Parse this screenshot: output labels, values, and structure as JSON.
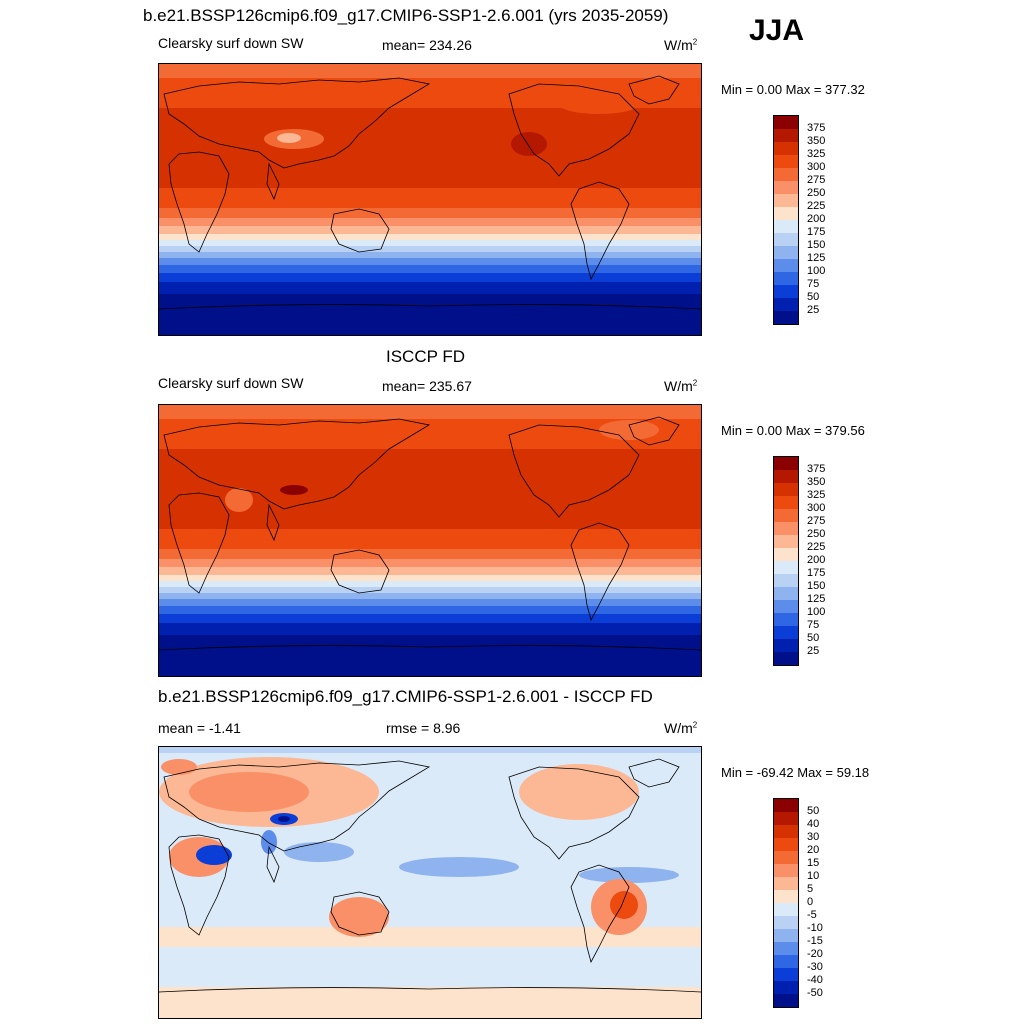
{
  "season": "JJA",
  "panels": [
    {
      "title": "b.e21.BSSP126cmip6.f09_g17.CMIP6-SSP1-2.6.001 (yrs 2035-2059)",
      "left_label": "Clearsky surf down SW",
      "center_label": "mean= 234.26",
      "units": "W/m",
      "units_sup": "2",
      "minmax": "Min =   0.00 Max = 377.32",
      "colorbar_labels": [
        "375",
        "350",
        "325",
        "300",
        "275",
        "250",
        "225",
        "200",
        "175",
        "150",
        "125",
        "100",
        "75",
        "50",
        "25"
      ],
      "colors": [
        "#8b0000",
        "#b51800",
        "#d63100",
        "#ed4a10",
        "#f36a34",
        "#f99068",
        "#fcb895",
        "#fde3cc",
        "#dbeaf8",
        "#b9d2f4",
        "#8fb3ef",
        "#5d8deb",
        "#2f66e4",
        "#0b3ed6",
        "#0020b0",
        "#00108a"
      ]
    },
    {
      "title": "ISCCP FD",
      "left_label": "Clearsky surf down SW",
      "center_label": "mean= 235.67",
      "units": "W/m",
      "units_sup": "2",
      "minmax": "Min =   0.00 Max = 379.56",
      "colorbar_labels": [
        "375",
        "350",
        "325",
        "300",
        "275",
        "250",
        "225",
        "200",
        "175",
        "150",
        "125",
        "100",
        "75",
        "50",
        "25"
      ],
      "colors": [
        "#8b0000",
        "#b51800",
        "#d63100",
        "#ed4a10",
        "#f36a34",
        "#f99068",
        "#fcb895",
        "#fde3cc",
        "#dbeaf8",
        "#b9d2f4",
        "#8fb3ef",
        "#5d8deb",
        "#2f66e4",
        "#0b3ed6",
        "#0020b0",
        "#00108a"
      ]
    },
    {
      "title": "b.e21.BSSP126cmip6.f09_g17.CMIP6-SSP1-2.6.001 - ISCCP FD",
      "left_label": "mean =  -1.41",
      "center_label": "rmse =   8.96",
      "units": "W/m",
      "units_sup": "2",
      "minmax": "Min = -69.42 Max =  59.18",
      "colorbar_labels": [
        "50",
        "40",
        "30",
        "20",
        "15",
        "10",
        "5",
        "0",
        "-5",
        "-10",
        "-15",
        "-20",
        "-30",
        "-40",
        "-50"
      ],
      "colors": [
        "#8b0000",
        "#b51800",
        "#d63100",
        "#ed4a10",
        "#f36a34",
        "#f99068",
        "#fcb895",
        "#fde3cc",
        "#dbeaf8",
        "#b9d2f4",
        "#8fb3ef",
        "#5d8deb",
        "#2f66e4",
        "#0b3ed6",
        "#0020b0",
        "#00108a"
      ]
    }
  ]
}
